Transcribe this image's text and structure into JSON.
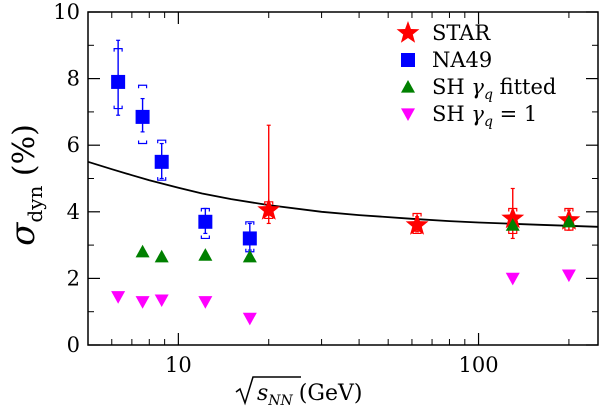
{
  "chart_data": {
    "type": "scatter",
    "title": "",
    "xlabel": "√s_NN (GeV)",
    "ylabel": "σ_dyn (%)",
    "xscale": "log",
    "xlim": [
      5,
      250
    ],
    "ylim": [
      0,
      10
    ],
    "x_ticks": [
      10,
      100
    ],
    "x_tick_labels": [
      "10",
      "100"
    ],
    "y_ticks": [
      0,
      2,
      4,
      6,
      8,
      10
    ],
    "y_tick_labels": [
      "0",
      "2",
      "4",
      "6",
      "8",
      "10"
    ],
    "grid": false,
    "legend_position": "top-right",
    "series": [
      {
        "name": "STAR",
        "marker": "star",
        "color": "#ff0000",
        "points": [
          {
            "x": 20,
            "y": 4.05,
            "err_lo": 0.4,
            "err_hi": 2.55,
            "sys_lo": 0.25,
            "sys_hi": 0.25
          },
          {
            "x": 62.4,
            "y": 3.6,
            "err_lo": 0.2,
            "err_hi": 0.25,
            "sys_lo": 0.25,
            "sys_hi": 0.35
          },
          {
            "x": 130,
            "y": 3.8,
            "err_lo": 0.6,
            "err_hi": 0.9,
            "sys_lo": 0.45,
            "sys_hi": 0.3
          },
          {
            "x": 200,
            "y": 3.75,
            "err_lo": 0.3,
            "err_hi": 0.3,
            "sys_lo": 0.3,
            "sys_hi": 0.35
          }
        ]
      },
      {
        "name": "NA49",
        "marker": "square",
        "color": "#0000ff",
        "points": [
          {
            "x": 6.3,
            "y": 7.9,
            "err_lo": 1.0,
            "err_hi": 1.25,
            "sys_lo": 0.8,
            "sys_hi": 1.0
          },
          {
            "x": 7.6,
            "y": 6.85,
            "err_lo": 0.45,
            "err_hi": 0.55,
            "sys_lo": 0.8,
            "sys_hi": 0.95
          },
          {
            "x": 8.8,
            "y": 5.5,
            "err_lo": 0.5,
            "err_hi": 0.55,
            "sys_lo": 0.55,
            "sys_hi": 0.65
          },
          {
            "x": 12.3,
            "y": 3.7,
            "err_lo": 0.35,
            "err_hi": 0.4,
            "sys_lo": 0.5,
            "sys_hi": 0.4
          },
          {
            "x": 17.3,
            "y": 3.2,
            "err_lo": 0.35,
            "err_hi": 0.45,
            "sys_lo": 0.4,
            "sys_hi": 0.5
          }
        ]
      },
      {
        "name": "SH γq fitted",
        "marker": "triangle-up",
        "color": "#008000",
        "points": [
          {
            "x": 7.6,
            "y": 2.8
          },
          {
            "x": 8.8,
            "y": 2.65
          },
          {
            "x": 12.3,
            "y": 2.7
          },
          {
            "x": 17.3,
            "y": 2.65
          },
          {
            "x": 130,
            "y": 3.6
          },
          {
            "x": 200,
            "y": 3.7
          }
        ]
      },
      {
        "name": "SH γq = 1",
        "marker": "triangle-down",
        "color": "#ff00ff",
        "points": [
          {
            "x": 6.3,
            "y": 1.45
          },
          {
            "x": 7.6,
            "y": 1.3
          },
          {
            "x": 8.8,
            "y": 1.35
          },
          {
            "x": 12.3,
            "y": 1.3
          },
          {
            "x": 17.3,
            "y": 0.8
          },
          {
            "x": 130,
            "y": 2.0
          },
          {
            "x": 200,
            "y": 2.1
          }
        ]
      }
    ],
    "curve": {
      "color": "#000000",
      "x": [
        5,
        6,
        7,
        8,
        10,
        12,
        15,
        20,
        30,
        40,
        60,
        80,
        100,
        130,
        160,
        200,
        250
      ],
      "y": [
        5.5,
        5.28,
        5.1,
        4.95,
        4.72,
        4.55,
        4.38,
        4.2,
        4.0,
        3.9,
        3.79,
        3.72,
        3.68,
        3.64,
        3.61,
        3.58,
        3.55
      ]
    }
  }
}
